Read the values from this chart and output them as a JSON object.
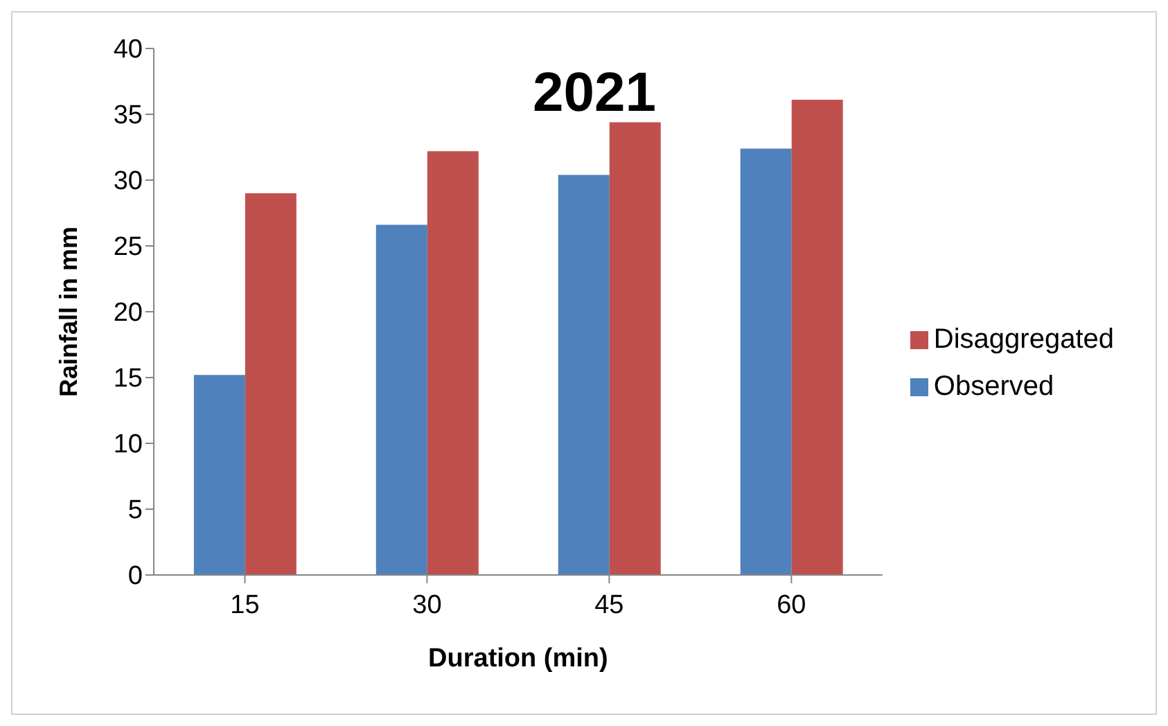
{
  "chart_data": {
    "type": "bar",
    "title": "2021",
    "xlabel": "Duration (min)",
    "ylabel": "Rainfall in mm",
    "categories": [
      "15",
      "30",
      "45",
      "60"
    ],
    "series": [
      {
        "name": "Observed",
        "color": "#4f81bd",
        "values": [
          15.2,
          26.6,
          30.4,
          32.4
        ]
      },
      {
        "name": "Disaggregated",
        "color": "#c0504d",
        "values": [
          29.0,
          32.2,
          34.4,
          36.1
        ]
      }
    ],
    "ylim": [
      0,
      40
    ],
    "yticks": [
      0,
      5,
      10,
      15,
      20,
      25,
      30,
      35,
      40
    ],
    "grid": false,
    "legend": "right"
  }
}
